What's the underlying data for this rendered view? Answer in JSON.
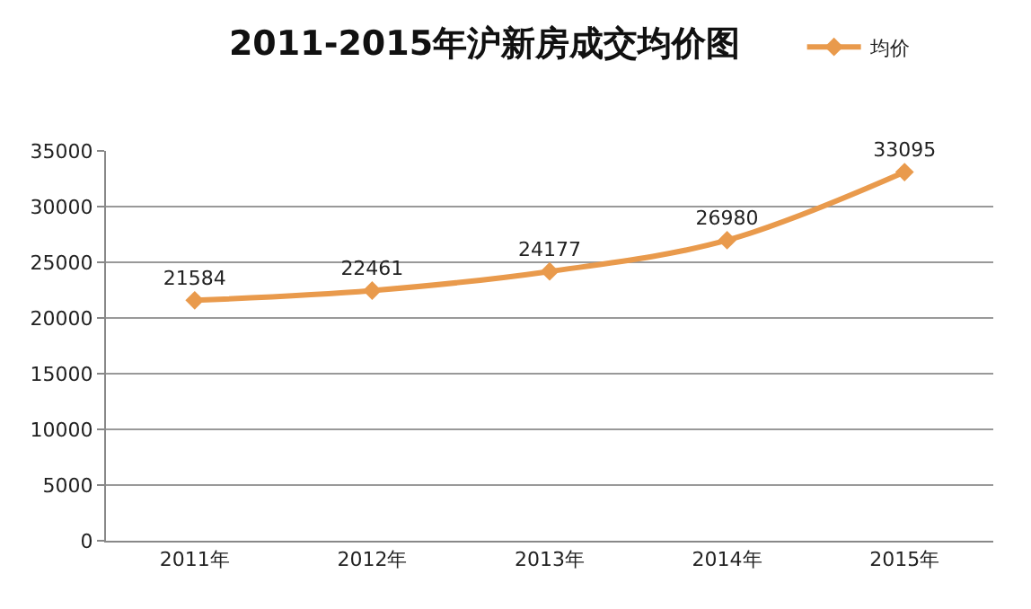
{
  "chart_data": {
    "type": "line",
    "title": "2011-2015年沪新房成交均价图",
    "categories": [
      "2011年",
      "2012年",
      "2013年",
      "2014年",
      "2015年"
    ],
    "series": [
      {
        "name": "均价",
        "color": "#e99a4c",
        "values": [
          21584,
          22461,
          24177,
          26980,
          33095
        ]
      }
    ],
    "ylim": [
      0,
      35000
    ],
    "yticks": [
      0,
      5000,
      10000,
      15000,
      20000,
      25000,
      30000,
      35000
    ],
    "grid": "y",
    "legend": "top right",
    "marker": "diamond",
    "line_style": "solid",
    "data_labels": true
  }
}
